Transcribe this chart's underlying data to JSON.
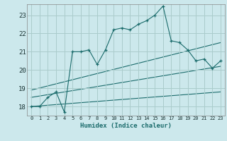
{
  "xlabel": "Humidex (Indice chaleur)",
  "bg_color": "#cce8ec",
  "grid_color": "#aacccc",
  "line_color": "#1a6b6b",
  "xlim": [
    -0.5,
    23.5
  ],
  "ylim": [
    17.5,
    23.6
  ],
  "xticks": [
    0,
    1,
    2,
    3,
    4,
    5,
    6,
    7,
    8,
    9,
    10,
    11,
    12,
    13,
    14,
    15,
    16,
    17,
    18,
    19,
    20,
    21,
    22,
    23
  ],
  "yticks": [
    18,
    19,
    20,
    21,
    22,
    23
  ],
  "main_x": [
    0,
    1,
    2,
    3,
    4,
    5,
    6,
    7,
    8,
    9,
    10,
    11,
    12,
    13,
    14,
    15,
    16,
    17,
    18,
    19,
    20,
    21,
    22,
    23
  ],
  "main_y": [
    18.0,
    18.0,
    18.5,
    18.8,
    17.7,
    21.0,
    21.0,
    21.1,
    20.3,
    21.1,
    22.2,
    22.3,
    22.2,
    22.5,
    22.7,
    23.0,
    23.5,
    21.6,
    21.5,
    21.1,
    20.5,
    20.6,
    20.1,
    20.5
  ],
  "reg_lines": [
    {
      "x": [
        0,
        23
      ],
      "y": [
        18.9,
        21.5
      ]
    },
    {
      "x": [
        0,
        23
      ],
      "y": [
        18.5,
        20.2
      ]
    },
    {
      "x": [
        0,
        23
      ],
      "y": [
        18.0,
        18.8
      ]
    }
  ]
}
